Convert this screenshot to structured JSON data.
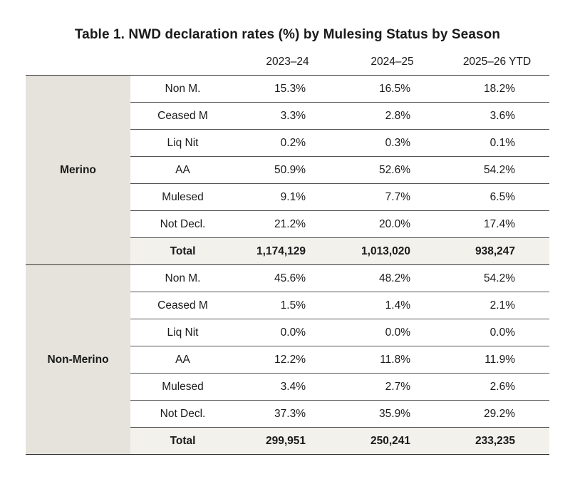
{
  "title": "Table 1. NWD declaration rates (%) by Mulesing Status by Season",
  "columns": [
    "2023–24",
    "2024–25",
    "2025–26 YTD"
  ],
  "groups": [
    {
      "name": "Merino",
      "rows": [
        {
          "status": "Non M.",
          "values": [
            "15.3%",
            "16.5%",
            "18.2%"
          ]
        },
        {
          "status": "Ceased M",
          "values": [
            "3.3%",
            "2.8%",
            "3.6%"
          ]
        },
        {
          "status": "Liq Nit",
          "values": [
            "0.2%",
            "0.3%",
            "0.1%"
          ]
        },
        {
          "status": "AA",
          "values": [
            "50.9%",
            "52.6%",
            "54.2%"
          ]
        },
        {
          "status": "Mulesed",
          "values": [
            "9.1%",
            "7.7%",
            "6.5%"
          ]
        },
        {
          "status": "Not Decl.",
          "values": [
            "21.2%",
            "20.0%",
            "17.4%"
          ]
        }
      ],
      "total": {
        "label": "Total",
        "values": [
          "1,174,129",
          "1,013,020",
          "938,247"
        ]
      }
    },
    {
      "name": "Non-Merino",
      "rows": [
        {
          "status": "Non M.",
          "values": [
            "45.6%",
            "48.2%",
            "54.2%"
          ]
        },
        {
          "status": "Ceased M",
          "values": [
            "1.5%",
            "1.4%",
            "2.1%"
          ]
        },
        {
          "status": "Liq Nit",
          "values": [
            "0.0%",
            "0.0%",
            "0.0%"
          ]
        },
        {
          "status": "AA",
          "values": [
            "12.2%",
            "11.8%",
            "11.9%"
          ]
        },
        {
          "status": "Mulesed",
          "values": [
            "3.4%",
            "2.7%",
            "2.6%"
          ]
        },
        {
          "status": "Not Decl.",
          "values": [
            "37.3%",
            "35.9%",
            "29.2%"
          ]
        }
      ],
      "total": {
        "label": "Total",
        "values": [
          "299,951",
          "250,241",
          "233,235"
        ]
      }
    }
  ],
  "colors": {
    "group_cell_bg": "#e6e3dc",
    "total_row_bg": "#f3f1ec",
    "rule": "#333333"
  }
}
